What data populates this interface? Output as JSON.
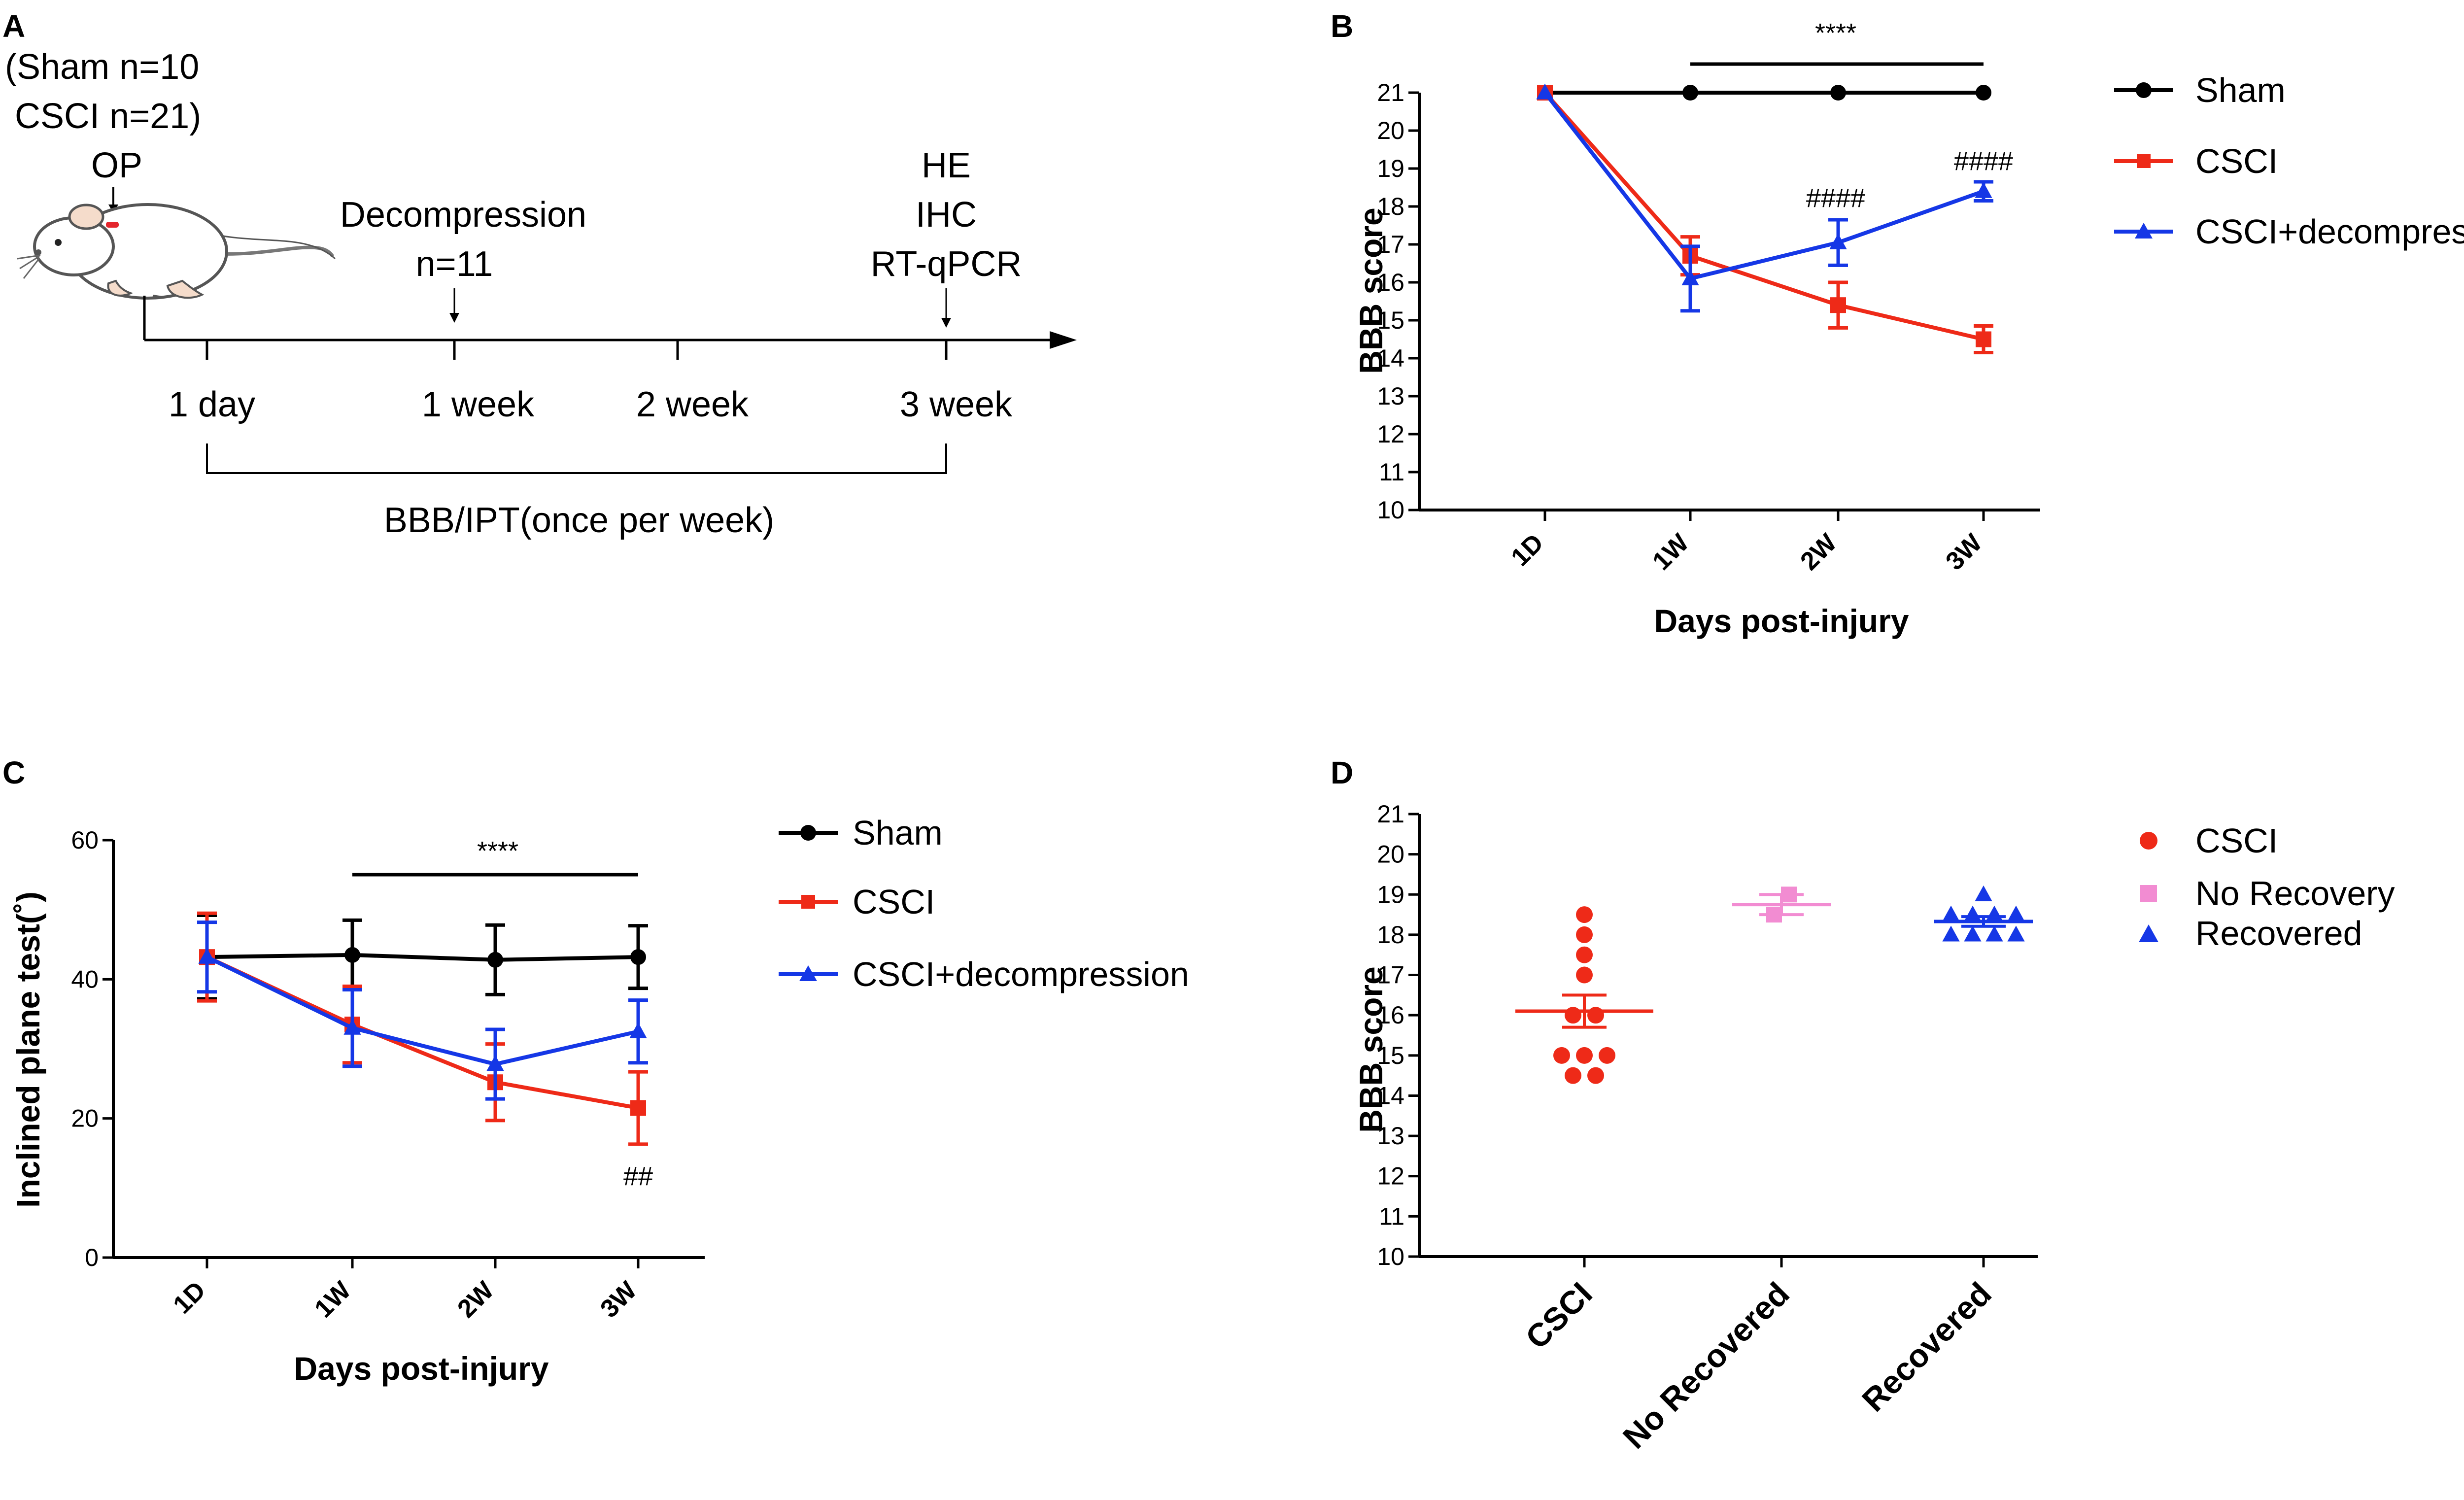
{
  "panels": {
    "A": {
      "label": "A",
      "group_line1": "(Sham n=10",
      "group_line2": "CSCI n=21)",
      "op": "OP",
      "decompression": "Decompression",
      "decompression_n": "n=11",
      "analyses": [
        "HE",
        "IHC",
        "RT-qPCR"
      ],
      "timepoints": [
        "1 day",
        "1 week",
        "2 week",
        "3 week"
      ],
      "assessment": "BBB/IPT(once per week)"
    },
    "B": {
      "label": "B"
    },
    "C": {
      "label": "C"
    },
    "D": {
      "label": "D"
    }
  },
  "colors": {
    "Sham": "#000000",
    "CSCI": "#ee2a18",
    "CSCI+decompression": "#1537e6",
    "No Recovery": "#f28cd2",
    "Recovered": "#1537e6",
    "mouse_mark": "#e4262d"
  },
  "chart_data": [
    {
      "panel": "B",
      "type": "line",
      "title": "",
      "xlabel": "Days post-injury",
      "ylabel": "BBB score",
      "ylim": [
        10,
        21
      ],
      "yticks": [
        10,
        11,
        12,
        13,
        14,
        15,
        16,
        17,
        18,
        19,
        20,
        21
      ],
      "categories": [
        "1D",
        "1W",
        "2W",
        "3W"
      ],
      "series": [
        {
          "name": "Sham",
          "marker": "circle",
          "values": [
            21,
            21,
            21,
            21
          ],
          "err": [
            0,
            0,
            0,
            0
          ]
        },
        {
          "name": "CSCI",
          "marker": "square",
          "values": [
            21,
            16.7,
            15.4,
            14.5
          ],
          "err": [
            0,
            0.5,
            0.6,
            0.35
          ]
        },
        {
          "name": "CSCI+decompression",
          "marker": "triangle",
          "values": [
            21,
            16.1,
            17.05,
            18.4
          ],
          "err": [
            0,
            0.85,
            0.6,
            0.25
          ]
        }
      ],
      "annotations": [
        {
          "text": "****",
          "from": "1W",
          "to": "3W"
        },
        {
          "text": "####",
          "at": "2W"
        },
        {
          "text": "####",
          "at": "3W"
        }
      ],
      "legend": "right"
    },
    {
      "panel": "C",
      "type": "line",
      "title": "",
      "xlabel": "Days post-injury",
      "ylabel": "Inclined plane test(˚)",
      "ylim": [
        0,
        60
      ],
      "yticks": [
        0,
        20,
        40,
        60
      ],
      "categories": [
        "1D",
        "1W",
        "2W",
        "3W"
      ],
      "series": [
        {
          "name": "Sham",
          "marker": "circle",
          "values": [
            43.2,
            43.5,
            42.8,
            43.2
          ],
          "err": [
            6,
            5,
            5,
            4.5
          ]
        },
        {
          "name": "CSCI",
          "marker": "square",
          "values": [
            43.2,
            33.5,
            25.2,
            21.5
          ],
          "err": [
            6.3,
            5.5,
            5.5,
            5.2
          ]
        },
        {
          "name": "CSCI+decompression",
          "marker": "triangle",
          "values": [
            43.2,
            33,
            27.8,
            32.5
          ],
          "err": [
            5,
            5.5,
            5,
            4.5
          ]
        }
      ],
      "annotations": [
        {
          "text": "****",
          "from": "1W",
          "to": "3W"
        },
        {
          "text": "##",
          "at": "3W"
        }
      ],
      "legend": "right"
    },
    {
      "panel": "D",
      "type": "scatter",
      "title": "",
      "xlabel": "",
      "ylabel": "BBB score",
      "ylim": [
        10,
        21
      ],
      "yticks": [
        10,
        11,
        12,
        13,
        14,
        15,
        16,
        17,
        18,
        19,
        20,
        21
      ],
      "categories": [
        "CSCI",
        "No Recovered",
        "Recovered"
      ],
      "series": [
        {
          "name": "CSCI",
          "marker": "circle",
          "category": "CSCI",
          "points": [
            18.5,
            18,
            17.5,
            17,
            16,
            16,
            15,
            15,
            15,
            14.5,
            14.5
          ],
          "mean": 16.1,
          "sem": 0.4
        },
        {
          "name": "No Recovery",
          "marker": "square",
          "category": "No Recovered",
          "points": [
            19,
            18.5
          ],
          "mean": 18.75,
          "sem": 0.25
        },
        {
          "name": "Recovered",
          "marker": "triangle",
          "category": "Recovered",
          "points": [
            19,
            18.5,
            18.5,
            18.5,
            18.5,
            18,
            18,
            18,
            18
          ],
          "mean": 18.33,
          "sem": 0.12
        }
      ],
      "legend": "right"
    }
  ]
}
